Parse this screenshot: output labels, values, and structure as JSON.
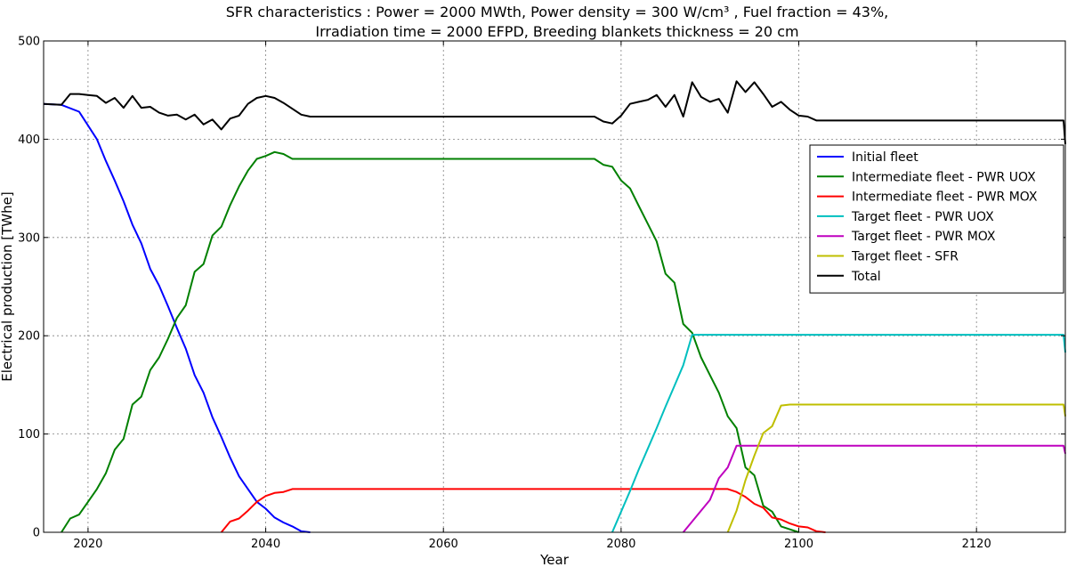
{
  "chart_data": {
    "type": "line",
    "title_lines": [
      "SFR characteristics : Power = 2000 MWth, Power density = 300 W/cm³ , Fuel fraction = 43%,",
      "Irradiation time = 2000 EFPD, Breeding blankets thickness = 20 cm"
    ],
    "xlabel": "Year",
    "ylabel": "Electrical production [TWhe]",
    "xlim": [
      2015,
      2130
    ],
    "ylim": [
      0,
      500
    ],
    "xticks": [
      2020,
      2040,
      2060,
      2080,
      2100,
      2120
    ],
    "yticks": [
      0,
      100,
      200,
      300,
      400,
      500
    ],
    "grid": true,
    "legend_position": "center-right",
    "series": [
      {
        "name": "Initial fleet",
        "color": "#0000ff",
        "points": [
          [
            2015,
            436
          ],
          [
            2017,
            435
          ],
          [
            2019,
            428
          ],
          [
            2021,
            400
          ],
          [
            2022,
            378
          ],
          [
            2023,
            358
          ],
          [
            2024,
            337
          ],
          [
            2025,
            313
          ],
          [
            2026,
            294
          ],
          [
            2027,
            268
          ],
          [
            2028,
            251
          ],
          [
            2029,
            230
          ],
          [
            2030,
            208
          ],
          [
            2031,
            187
          ],
          [
            2032,
            160
          ],
          [
            2033,
            142
          ],
          [
            2034,
            117
          ],
          [
            2035,
            97
          ],
          [
            2036,
            76
          ],
          [
            2037,
            57
          ],
          [
            2038,
            44
          ],
          [
            2039,
            31
          ],
          [
            2040,
            24
          ],
          [
            2041,
            15
          ],
          [
            2042,
            10
          ],
          [
            2043,
            6
          ],
          [
            2044,
            1
          ],
          [
            2045,
            0
          ]
        ]
      },
      {
        "name": "Intermediate fleet - PWR UOX",
        "color": "#008000",
        "points": [
          [
            2017,
            0
          ],
          [
            2018,
            14
          ],
          [
            2019,
            18
          ],
          [
            2020,
            31
          ],
          [
            2021,
            44
          ],
          [
            2022,
            60
          ],
          [
            2023,
            84
          ],
          [
            2024,
            95
          ],
          [
            2025,
            130
          ],
          [
            2026,
            138
          ],
          [
            2027,
            165
          ],
          [
            2028,
            178
          ],
          [
            2029,
            197
          ],
          [
            2030,
            218
          ],
          [
            2031,
            231
          ],
          [
            2032,
            265
          ],
          [
            2033,
            273
          ],
          [
            2034,
            302
          ],
          [
            2035,
            311
          ],
          [
            2036,
            333
          ],
          [
            2037,
            352
          ],
          [
            2038,
            368
          ],
          [
            2039,
            380
          ],
          [
            2040,
            383
          ],
          [
            2041,
            387
          ],
          [
            2042,
            385
          ],
          [
            2043,
            380
          ],
          [
            2050,
            380
          ],
          [
            2060,
            380
          ],
          [
            2070,
            380
          ],
          [
            2077,
            380
          ],
          [
            2078,
            374
          ],
          [
            2079,
            372
          ],
          [
            2080,
            358
          ],
          [
            2081,
            350
          ],
          [
            2082,
            332
          ],
          [
            2083,
            314
          ],
          [
            2084,
            296
          ],
          [
            2085,
            263
          ],
          [
            2086,
            254
          ],
          [
            2087,
            212
          ],
          [
            2088,
            203
          ],
          [
            2089,
            178
          ],
          [
            2090,
            160
          ],
          [
            2091,
            142
          ],
          [
            2092,
            118
          ],
          [
            2093,
            106
          ],
          [
            2094,
            66
          ],
          [
            2095,
            58
          ],
          [
            2096,
            27
          ],
          [
            2097,
            21
          ],
          [
            2098,
            6
          ],
          [
            2099,
            3
          ],
          [
            2100,
            0
          ]
        ]
      },
      {
        "name": "Intermediate fleet - PWR MOX",
        "color": "#ff0000",
        "points": [
          [
            2035,
            0
          ],
          [
            2036,
            11
          ],
          [
            2037,
            14
          ],
          [
            2038,
            22
          ],
          [
            2039,
            31
          ],
          [
            2040,
            37
          ],
          [
            2041,
            40
          ],
          [
            2042,
            41
          ],
          [
            2043,
            44
          ],
          [
            2050,
            44
          ],
          [
            2060,
            44
          ],
          [
            2070,
            44
          ],
          [
            2080,
            44
          ],
          [
            2090,
            44
          ],
          [
            2092,
            44
          ],
          [
            2093,
            41
          ],
          [
            2094,
            36
          ],
          [
            2095,
            29
          ],
          [
            2096,
            25
          ],
          [
            2097,
            15
          ],
          [
            2098,
            13
          ],
          [
            2099,
            9
          ],
          [
            2100,
            6
          ],
          [
            2101,
            5
          ],
          [
            2102,
            1
          ],
          [
            2103,
            0
          ]
        ]
      },
      {
        "name": "Target fleet - PWR UOX",
        "color": "#00bfbf",
        "points": [
          [
            2079,
            0
          ],
          [
            2080,
            21
          ],
          [
            2081,
            42
          ],
          [
            2082,
            64
          ],
          [
            2083,
            85
          ],
          [
            2084,
            106
          ],
          [
            2085,
            128
          ],
          [
            2086,
            149
          ],
          [
            2087,
            170
          ],
          [
            2088,
            201
          ],
          [
            2100,
            201
          ],
          [
            2110,
            201
          ],
          [
            2120,
            201
          ],
          [
            2129.8,
            201
          ],
          [
            2130,
            183
          ]
        ]
      },
      {
        "name": "Target fleet - PWR MOX",
        "color": "#bf00bf",
        "points": [
          [
            2087,
            0
          ],
          [
            2088,
            11
          ],
          [
            2089,
            22
          ],
          [
            2090,
            33
          ],
          [
            2091,
            55
          ],
          [
            2092,
            66
          ],
          [
            2093,
            88
          ],
          [
            2100,
            88
          ],
          [
            2110,
            88
          ],
          [
            2120,
            88
          ],
          [
            2129.8,
            88
          ],
          [
            2130,
            80
          ]
        ]
      },
      {
        "name": "Target fleet - SFR",
        "color": "#bfbf00",
        "points": [
          [
            2092,
            0
          ],
          [
            2093,
            22
          ],
          [
            2094,
            53
          ],
          [
            2095,
            78
          ],
          [
            2096,
            101
          ],
          [
            2097,
            108
          ],
          [
            2098,
            129
          ],
          [
            2099,
            130
          ],
          [
            2110,
            130
          ],
          [
            2120,
            130
          ],
          [
            2129.8,
            130
          ],
          [
            2130,
            118
          ]
        ]
      },
      {
        "name": "Total",
        "color": "#000000",
        "points": [
          [
            2015,
            436
          ],
          [
            2017,
            435
          ],
          [
            2018,
            446
          ],
          [
            2019,
            446
          ],
          [
            2020,
            445
          ],
          [
            2021,
            444
          ],
          [
            2022,
            437
          ],
          [
            2023,
            442
          ],
          [
            2024,
            432
          ],
          [
            2025,
            444
          ],
          [
            2026,
            432
          ],
          [
            2027,
            433
          ],
          [
            2028,
            427
          ],
          [
            2029,
            424
          ],
          [
            2030,
            425
          ],
          [
            2031,
            420
          ],
          [
            2032,
            425
          ],
          [
            2033,
            415
          ],
          [
            2034,
            420
          ],
          [
            2035,
            410
          ],
          [
            2036,
            421
          ],
          [
            2037,
            424
          ],
          [
            2038,
            436
          ],
          [
            2039,
            442
          ],
          [
            2040,
            444
          ],
          [
            2041,
            442
          ],
          [
            2042,
            437
          ],
          [
            2043,
            431
          ],
          [
            2044,
            425
          ],
          [
            2045,
            423
          ],
          [
            2050,
            423
          ],
          [
            2060,
            423
          ],
          [
            2070,
            423
          ],
          [
            2077,
            423
          ],
          [
            2078,
            418
          ],
          [
            2079,
            416
          ],
          [
            2080,
            424
          ],
          [
            2081,
            436
          ],
          [
            2082,
            438
          ],
          [
            2083,
            440
          ],
          [
            2084,
            445
          ],
          [
            2085,
            433
          ],
          [
            2086,
            445
          ],
          [
            2087,
            423
          ],
          [
            2088,
            458
          ],
          [
            2089,
            443
          ],
          [
            2090,
            438
          ],
          [
            2091,
            441
          ],
          [
            2092,
            427
          ],
          [
            2093,
            459
          ],
          [
            2094,
            448
          ],
          [
            2095,
            458
          ],
          [
            2096,
            446
          ],
          [
            2097,
            433
          ],
          [
            2098,
            438
          ],
          [
            2099,
            430
          ],
          [
            2100,
            424
          ],
          [
            2101,
            423
          ],
          [
            2102,
            419
          ],
          [
            2110,
            419
          ],
          [
            2120,
            419
          ],
          [
            2129.8,
            419
          ],
          [
            2130,
            395
          ]
        ]
      }
    ]
  }
}
